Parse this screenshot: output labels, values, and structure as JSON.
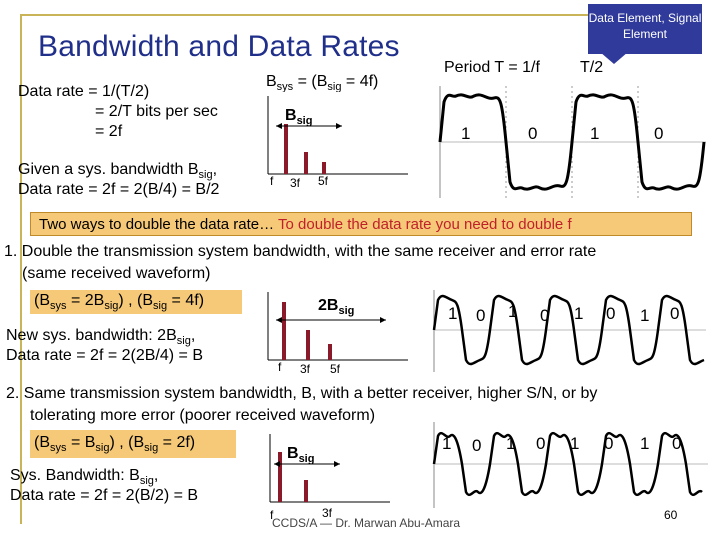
{
  "slide": {
    "title": "Bandwidth and Data Rates",
    "callout": "Data Element, Signal Element",
    "period_label": "Period T = 1/f",
    "half_period": "T/2",
    "left_lines": [
      "Data rate = 1/(T/2)",
      "= 2/T bits per sec",
      "= 2f"
    ],
    "given_line1": "Given a sys. bandwidth B",
    "given_line1_sub": "sig",
    "given_line2": "Data rate = 2f = 2(B/4) = B/2",
    "bsys_eq": "B",
    "bsys_sub": "sys",
    "bsys_mid": " = (B",
    "bsig_sub": "sig",
    "bsys_end": " = 4f)",
    "spectrum1": {
      "label": "B",
      "label_sub": "sig",
      "f": "f",
      "x3": "3f",
      "x5": "5f"
    },
    "bits1": [
      "1",
      "0",
      "1",
      "0"
    ],
    "banner_black": "Two ways to double the data rate… ",
    "banner_red": "To double the data rate you need to double f",
    "point1_line1": "1. Double the transmission system bandwidth, with the same receiver and error rate",
    "point1_line2": "(same received waveform)",
    "point1_box": "(B",
    "point1_box_sub1": "sys",
    "point1_box_mid": " = 2B",
    "point1_box_sub2": "sig",
    "point1_box_mid2": ") , (B",
    "point1_box_sub3": "sig",
    "point1_box_end": " = 4f)",
    "newsys_line1": "New sys. bandwidth: 2B",
    "newsys_sub": "sig",
    "newsys_line2": "Data rate = 2f = 2(2B/4) = B",
    "spectrum2": {
      "label": "2B",
      "label_sub": "sig",
      "f": "f",
      "x3": "3f",
      "x5": "5f"
    },
    "bits2": [
      "1",
      "0",
      "1",
      "0",
      "1",
      "0",
      "1",
      "0"
    ],
    "point2_line1": "2. Same transmission system bandwidth, B, with a better receiver, higher S/N, or by",
    "point2_line2": "tolerating more error (poorer received waveform)",
    "point2_box": "(B",
    "point2_box_sub1": "sys",
    "point2_box_mid": " = B",
    "point2_box_sub2": "sig",
    "point2_box_mid2": ") , (B",
    "point2_box_sub3": "sig",
    "point2_box_end": " = 2f)",
    "sysbw_line1": "Sys. Bandwidth: B",
    "sysbw_sub": "sig",
    "sysbw_line2": "Data rate = 2f = 2(B/2) = B",
    "spectrum3": {
      "label": "B",
      "label_sub": "sig",
      "f": "f",
      "x3": "3f"
    },
    "bits3": [
      "1",
      "0",
      "1",
      "0",
      "1",
      "0",
      "1",
      "0"
    ],
    "footer": "CCDS/A — Dr. Marwan Abu-Amara",
    "page_number": "60"
  }
}
